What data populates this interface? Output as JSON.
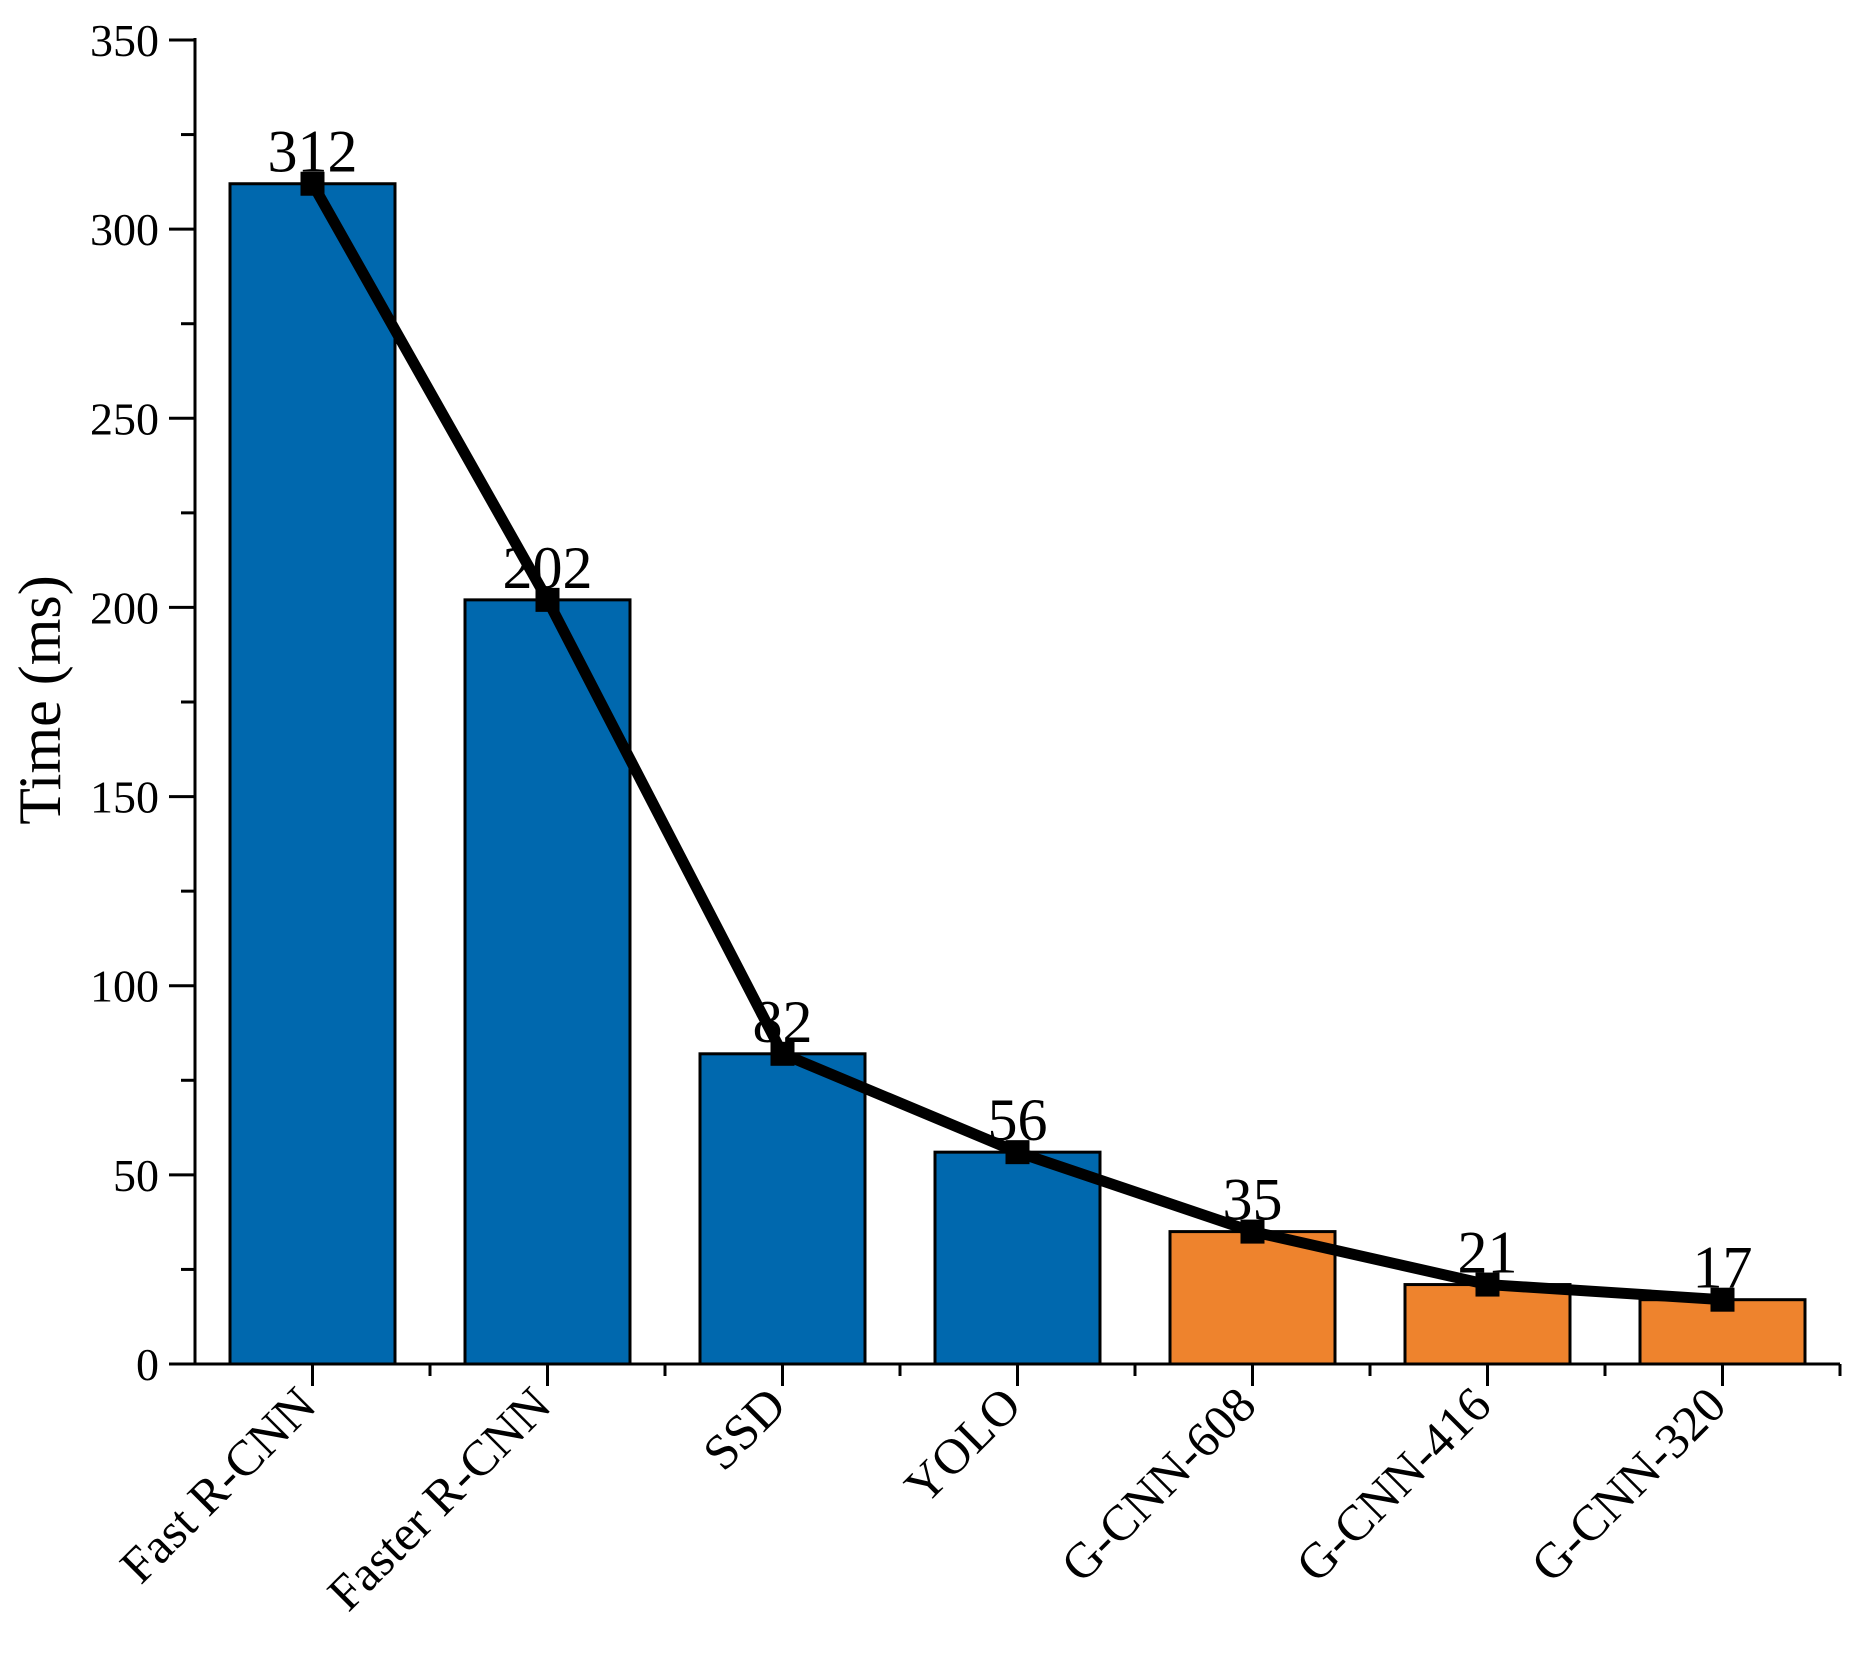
{
  "chart_data": {
    "type": "bar",
    "title": "",
    "xlabel": "",
    "ylabel": "Time (ms)",
    "ylim": [
      0,
      350
    ],
    "yticks": [
      0,
      50,
      100,
      150,
      200,
      250,
      300,
      350
    ],
    "categories": [
      "Fast R-CNN",
      "Faster R-CNN",
      "SSD",
      "YOLO",
      "G-CNN-608",
      "G-CNN-416",
      "G-CNN-320"
    ],
    "values": [
      312,
      202,
      82,
      56,
      35,
      21,
      17
    ],
    "data_labels": [
      "312",
      "202",
      "82",
      "56",
      "35",
      "21",
      "17"
    ],
    "bar_colors": [
      "#0068AE",
      "#0068AE",
      "#0068AE",
      "#0068AE",
      "#EE832D",
      "#EE832D",
      "#EE832D"
    ],
    "overlay_line": {
      "type": "line",
      "values": [
        312,
        202,
        82,
        56,
        35,
        21,
        17
      ],
      "color": "#000000",
      "marker": "square"
    },
    "grid": false,
    "legend": "none"
  }
}
